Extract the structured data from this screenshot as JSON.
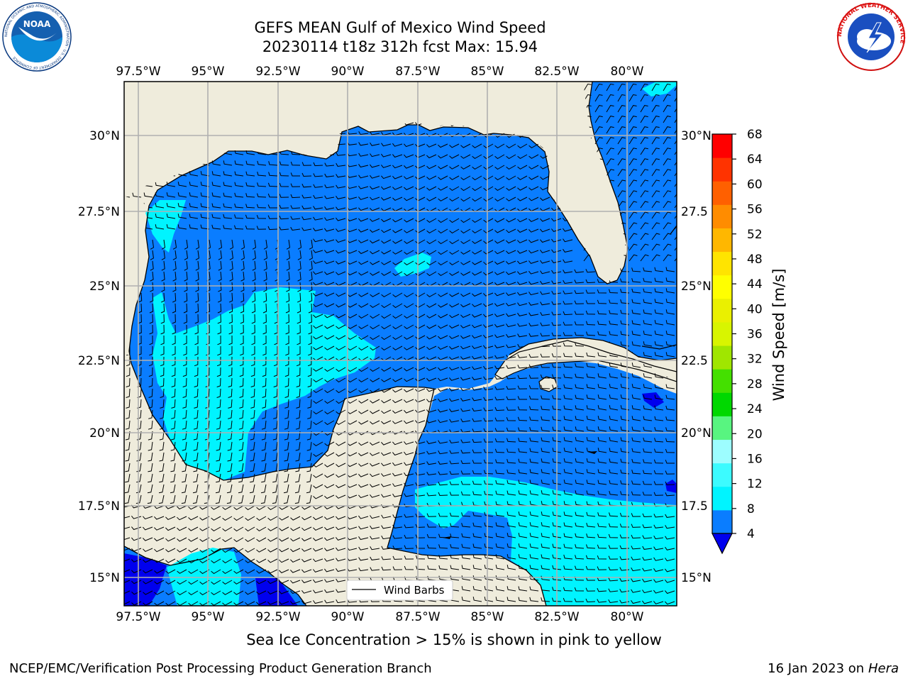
{
  "header": {
    "title_line1": "GEFS MEAN Gulf of Mexico Wind Speed",
    "title_line2": "20230114 t18z 312h fcst   Max: 15.94"
  },
  "map": {
    "lon_labels": [
      "97.5°W",
      "95°W",
      "92.5°W",
      "90°W",
      "87.5°W",
      "85°W",
      "82.5°W",
      "80°W"
    ],
    "lat_labels": [
      "30°N",
      "27.5°N",
      "25°N",
      "22.5°N",
      "20°N",
      "17.5°N",
      "15°N"
    ],
    "lat_labels_right": [
      "30°N",
      "27.5",
      "25°N",
      "22.5",
      "20°N",
      "17.5",
      "15°N"
    ],
    "legend_label": "Wind Barbs",
    "land_color": "#efecdc",
    "ocean_color": "#0a7dff"
  },
  "colorbar": {
    "label": "Wind Speed [m/s]",
    "ticks": [
      "4",
      "8",
      "12",
      "16",
      "20",
      "24",
      "28",
      "32",
      "36",
      "40",
      "44",
      "48",
      "52",
      "56",
      "60",
      "64",
      "68"
    ],
    "colors": [
      "#0a7dff",
      "#00f4ff",
      "#3cfbff",
      "#9dfdff",
      "#58f580",
      "#00d800",
      "#44e000",
      "#a0e600",
      "#d8f500",
      "#eaf000",
      "#ffff00",
      "#ffe400",
      "#ffb700",
      "#ff8c00",
      "#ff6000",
      "#ff3300",
      "#ff0000"
    ],
    "under_color": "#0000ee"
  },
  "notes": {
    "sea_ice": "Sea Ice Concentration > 15% is shown in pink to yellow"
  },
  "footer": {
    "left": "NCEP/EMC/Verification Post Processing Product Generation Branch",
    "date": "16 Jan 2023 on ",
    "machine": "Hera"
  },
  "logos": {
    "noaa_text": "NOAA",
    "noaa_ring": "NATIONAL OCEANIC AND ATMOSPHERIC ADMINISTRATION · U.S. DEPARTMENT OF COMMERCE",
    "nws_ring": "NATIONAL WEATHER SERVICE"
  }
}
